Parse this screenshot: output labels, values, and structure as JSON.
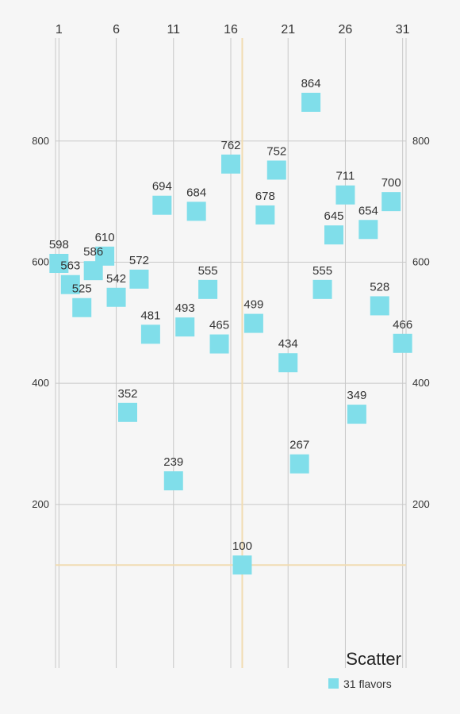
{
  "chart_data": {
    "type": "scatter",
    "description": "Scatter",
    "series": [
      {
        "name": "31 flavors",
        "color": "#80deea",
        "x": [
          1,
          2,
          3,
          4,
          5,
          6,
          7,
          8,
          9,
          10,
          11,
          12,
          13,
          14,
          15,
          16,
          17,
          18,
          19,
          20,
          21,
          22,
          23,
          24,
          25,
          26,
          27,
          28,
          29,
          30,
          31
        ],
        "y": [
          598,
          563,
          525,
          586,
          610,
          542,
          352,
          572,
          481,
          694,
          239,
          493,
          684,
          555,
          465,
          762,
          100,
          499,
          678,
          752,
          434,
          267,
          864,
          555,
          645,
          711,
          349,
          654,
          528,
          700,
          466
        ]
      }
    ],
    "x_ticks": [
      "1",
      "6",
      "11",
      "16",
      "21",
      "26",
      "31"
    ],
    "y_ticks": [
      "200",
      "400",
      "600",
      "800"
    ],
    "xlim": [
      0.7,
      31.3
    ],
    "ylim": [
      -70,
      970
    ],
    "highlight": {
      "x": 17,
      "y": 100
    },
    "grid": true,
    "legend_position": "bottom-right"
  }
}
